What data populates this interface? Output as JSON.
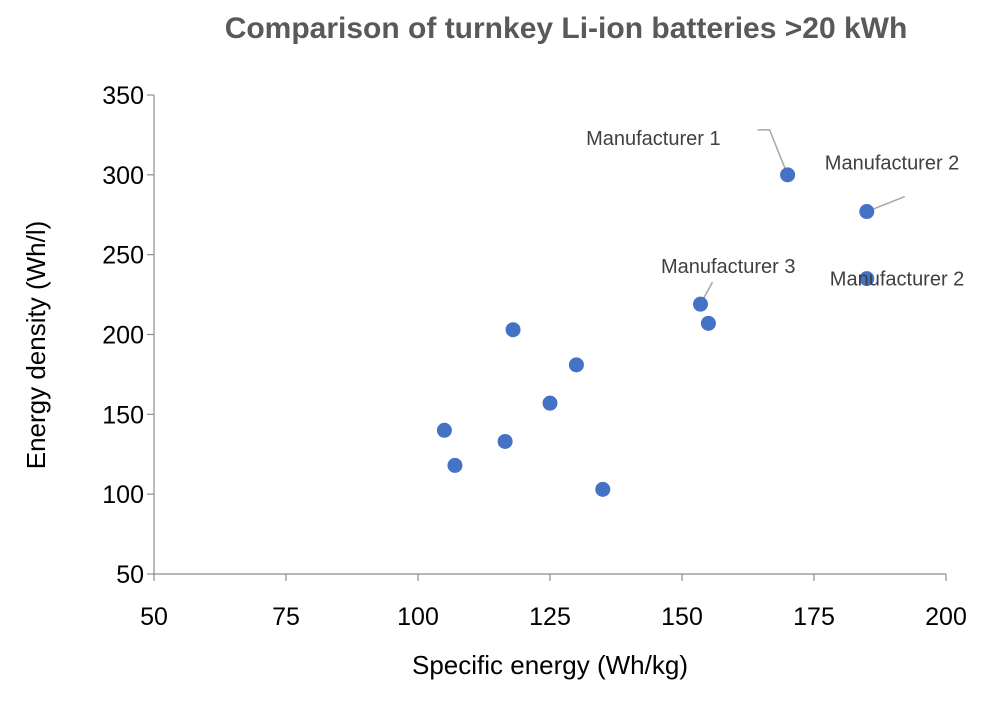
{
  "chart_data": {
    "type": "scatter",
    "title": "Comparison of turnkey Li-ion batteries >20 kWh",
    "xlabel": "Specific energy (Wh/kg)",
    "ylabel": "Energy density (Wh/l)",
    "xlim": [
      50,
      200
    ],
    "ylim": [
      50,
      350
    ],
    "xticks": [
      50,
      75,
      100,
      125,
      150,
      175,
      200
    ],
    "yticks": [
      50,
      100,
      150,
      200,
      250,
      300,
      350
    ],
    "grid": false,
    "marker_color": "#4472C4",
    "points": [
      {
        "x": 170,
        "y": 300
      },
      {
        "x": 185,
        "y": 277
      },
      {
        "x": 185,
        "y": 235
      },
      {
        "x": 153.5,
        "y": 219
      },
      {
        "x": 155,
        "y": 207
      },
      {
        "x": 118,
        "y": 203
      },
      {
        "x": 130,
        "y": 181
      },
      {
        "x": 125,
        "y": 157
      },
      {
        "x": 105,
        "y": 140
      },
      {
        "x": 116.5,
        "y": 133
      },
      {
        "x": 107,
        "y": 118
      },
      {
        "x": 135,
        "y": 103
      }
    ],
    "annotations": [
      {
        "text": "Manufacturer 1",
        "x": 170,
        "y": 300
      },
      {
        "text": "Manufacturer 2",
        "x": 185,
        "y": 277
      },
      {
        "text": "Manufacturer 2",
        "x": 185,
        "y": 235
      },
      {
        "text": "Manufacturer 3",
        "x": 153.5,
        "y": 219
      }
    ]
  }
}
